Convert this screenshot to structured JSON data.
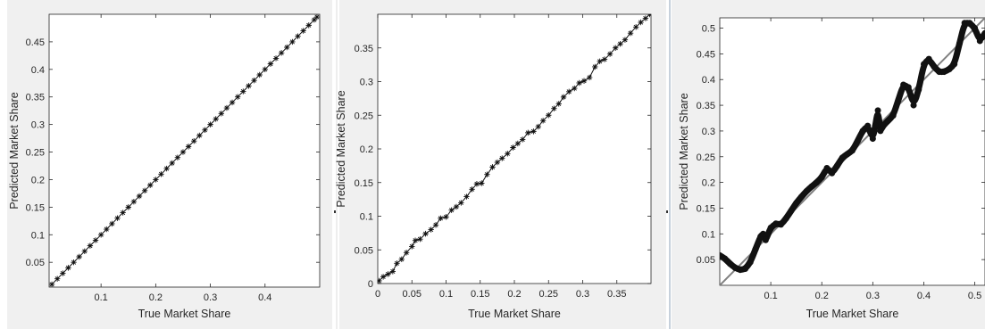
{
  "colors": {
    "background": "#ffffff",
    "panel_background": "#f0f0f0",
    "axis": "#262626",
    "marker": "#111111",
    "reference_line": "#808080",
    "separator": "#8fa3b8"
  },
  "chart_data": [
    {
      "type": "scatter",
      "title": "",
      "xlabel": "True Market Share",
      "ylabel": "Predicted Market Share",
      "xlim": [
        0.005,
        0.5
      ],
      "ylim": [
        0.005,
        0.5
      ],
      "xticks": [
        "0.1",
        "0.2",
        "0.3",
        "0.4"
      ],
      "yticks": [
        "0.05",
        "0.1",
        "0.15",
        "0.2",
        "0.25",
        "0.3",
        "0.35",
        "0.4",
        "0.45"
      ],
      "grid": false,
      "marker": "asterisk",
      "series": [
        {
          "x": [
            0.01,
            0.02,
            0.03,
            0.04,
            0.05,
            0.06,
            0.07,
            0.08,
            0.09,
            0.1,
            0.11,
            0.12,
            0.13,
            0.14,
            0.15,
            0.16,
            0.17,
            0.18,
            0.19,
            0.2,
            0.21,
            0.22,
            0.23,
            0.24,
            0.25,
            0.26,
            0.27,
            0.28,
            0.29,
            0.3,
            0.31,
            0.32,
            0.33,
            0.34,
            0.35,
            0.36,
            0.37,
            0.38,
            0.39,
            0.4,
            0.41,
            0.42,
            0.43,
            0.44,
            0.45,
            0.46,
            0.47,
            0.48,
            0.49,
            0.495
          ],
          "y": [
            0.01,
            0.02,
            0.03,
            0.04,
            0.05,
            0.06,
            0.07,
            0.08,
            0.09,
            0.1,
            0.11,
            0.12,
            0.13,
            0.14,
            0.15,
            0.16,
            0.17,
            0.18,
            0.19,
            0.2,
            0.21,
            0.22,
            0.23,
            0.24,
            0.25,
            0.26,
            0.27,
            0.28,
            0.29,
            0.3,
            0.31,
            0.32,
            0.33,
            0.34,
            0.35,
            0.36,
            0.37,
            0.38,
            0.39,
            0.4,
            0.41,
            0.42,
            0.43,
            0.44,
            0.45,
            0.46,
            0.47,
            0.48,
            0.49,
            0.495
          ]
        }
      ]
    },
    {
      "type": "scatter",
      "title": "",
      "xlabel": "True Market Share",
      "ylabel": "Predicted Market Share",
      "xlim": [
        0,
        0.4
      ],
      "ylim": [
        0,
        0.4
      ],
      "xticks": [
        "0",
        "0.05",
        "0.1",
        "0.15",
        "0.2",
        "0.25",
        "0.3",
        "0.35"
      ],
      "yticks": [
        "0",
        "0.05",
        "0.1",
        "0.15",
        "0.2",
        "0.25",
        "0.3",
        "0.35"
      ],
      "grid": false,
      "marker": "asterisk",
      "series": [
        {
          "x": [
            0.002,
            0.008,
            0.015,
            0.022,
            0.028,
            0.035,
            0.042,
            0.05,
            0.055,
            0.062,
            0.07,
            0.078,
            0.085,
            0.092,
            0.1,
            0.108,
            0.115,
            0.122,
            0.13,
            0.138,
            0.145,
            0.152,
            0.16,
            0.168,
            0.175,
            0.182,
            0.19,
            0.198,
            0.205,
            0.212,
            0.22,
            0.228,
            0.235,
            0.242,
            0.25,
            0.258,
            0.265,
            0.272,
            0.28,
            0.288,
            0.295,
            0.302,
            0.31,
            0.318,
            0.325,
            0.332,
            0.34,
            0.348,
            0.355,
            0.362,
            0.37,
            0.378,
            0.385,
            0.392,
            0.398
          ],
          "y": [
            0.004,
            0.01,
            0.014,
            0.018,
            0.03,
            0.036,
            0.046,
            0.055,
            0.064,
            0.066,
            0.074,
            0.08,
            0.087,
            0.097,
            0.099,
            0.109,
            0.114,
            0.12,
            0.129,
            0.14,
            0.148,
            0.149,
            0.162,
            0.173,
            0.18,
            0.186,
            0.193,
            0.202,
            0.208,
            0.214,
            0.224,
            0.226,
            0.233,
            0.242,
            0.25,
            0.26,
            0.267,
            0.277,
            0.285,
            0.29,
            0.298,
            0.301,
            0.306,
            0.322,
            0.33,
            0.333,
            0.341,
            0.35,
            0.356,
            0.362,
            0.372,
            0.381,
            0.388,
            0.394,
            0.4
          ]
        }
      ]
    },
    {
      "type": "scatter",
      "title": "",
      "xlabel": "True Market Share",
      "ylabel": "Predicted Market Share",
      "xlim": [
        0,
        0.52
      ],
      "ylim": [
        0,
        0.52
      ],
      "xticks": [
        "0.1",
        "0.2",
        "0.3",
        "0.4",
        "0.5"
      ],
      "yticks": [
        "0.05",
        "0.1",
        "0.15",
        "0.2",
        "0.25",
        "0.3",
        "0.35",
        "0.4",
        "0.45",
        "0.5"
      ],
      "grid": false,
      "marker": "dense-dots",
      "reference_line": "y = x",
      "series": [
        {
          "x": [
            0,
            0.01,
            0.02,
            0.03,
            0.04,
            0.05,
            0.06,
            0.07,
            0.08,
            0.085,
            0.09,
            0.095,
            0.1,
            0.11,
            0.12,
            0.13,
            0.14,
            0.15,
            0.16,
            0.17,
            0.18,
            0.19,
            0.2,
            0.21,
            0.22,
            0.23,
            0.24,
            0.25,
            0.26,
            0.27,
            0.28,
            0.29,
            0.3,
            0.305,
            0.31,
            0.315,
            0.32,
            0.33,
            0.34,
            0.35,
            0.36,
            0.37,
            0.38,
            0.39,
            0.4,
            0.41,
            0.42,
            0.43,
            0.44,
            0.45,
            0.46,
            0.47,
            0.48,
            0.49,
            0.5,
            0.51,
            0.52
          ],
          "y": [
            0.058,
            0.052,
            0.042,
            0.034,
            0.03,
            0.032,
            0.045,
            0.07,
            0.095,
            0.1,
            0.088,
            0.1,
            0.112,
            0.12,
            0.118,
            0.13,
            0.145,
            0.16,
            0.172,
            0.183,
            0.192,
            0.2,
            0.21,
            0.228,
            0.218,
            0.232,
            0.248,
            0.255,
            0.262,
            0.28,
            0.3,
            0.31,
            0.285,
            0.31,
            0.34,
            0.3,
            0.31,
            0.32,
            0.33,
            0.36,
            0.39,
            0.385,
            0.35,
            0.38,
            0.43,
            0.44,
            0.425,
            0.415,
            0.415,
            0.42,
            0.43,
            0.47,
            0.51,
            0.51,
            0.5,
            0.475,
            0.49
          ]
        }
      ]
    }
  ]
}
